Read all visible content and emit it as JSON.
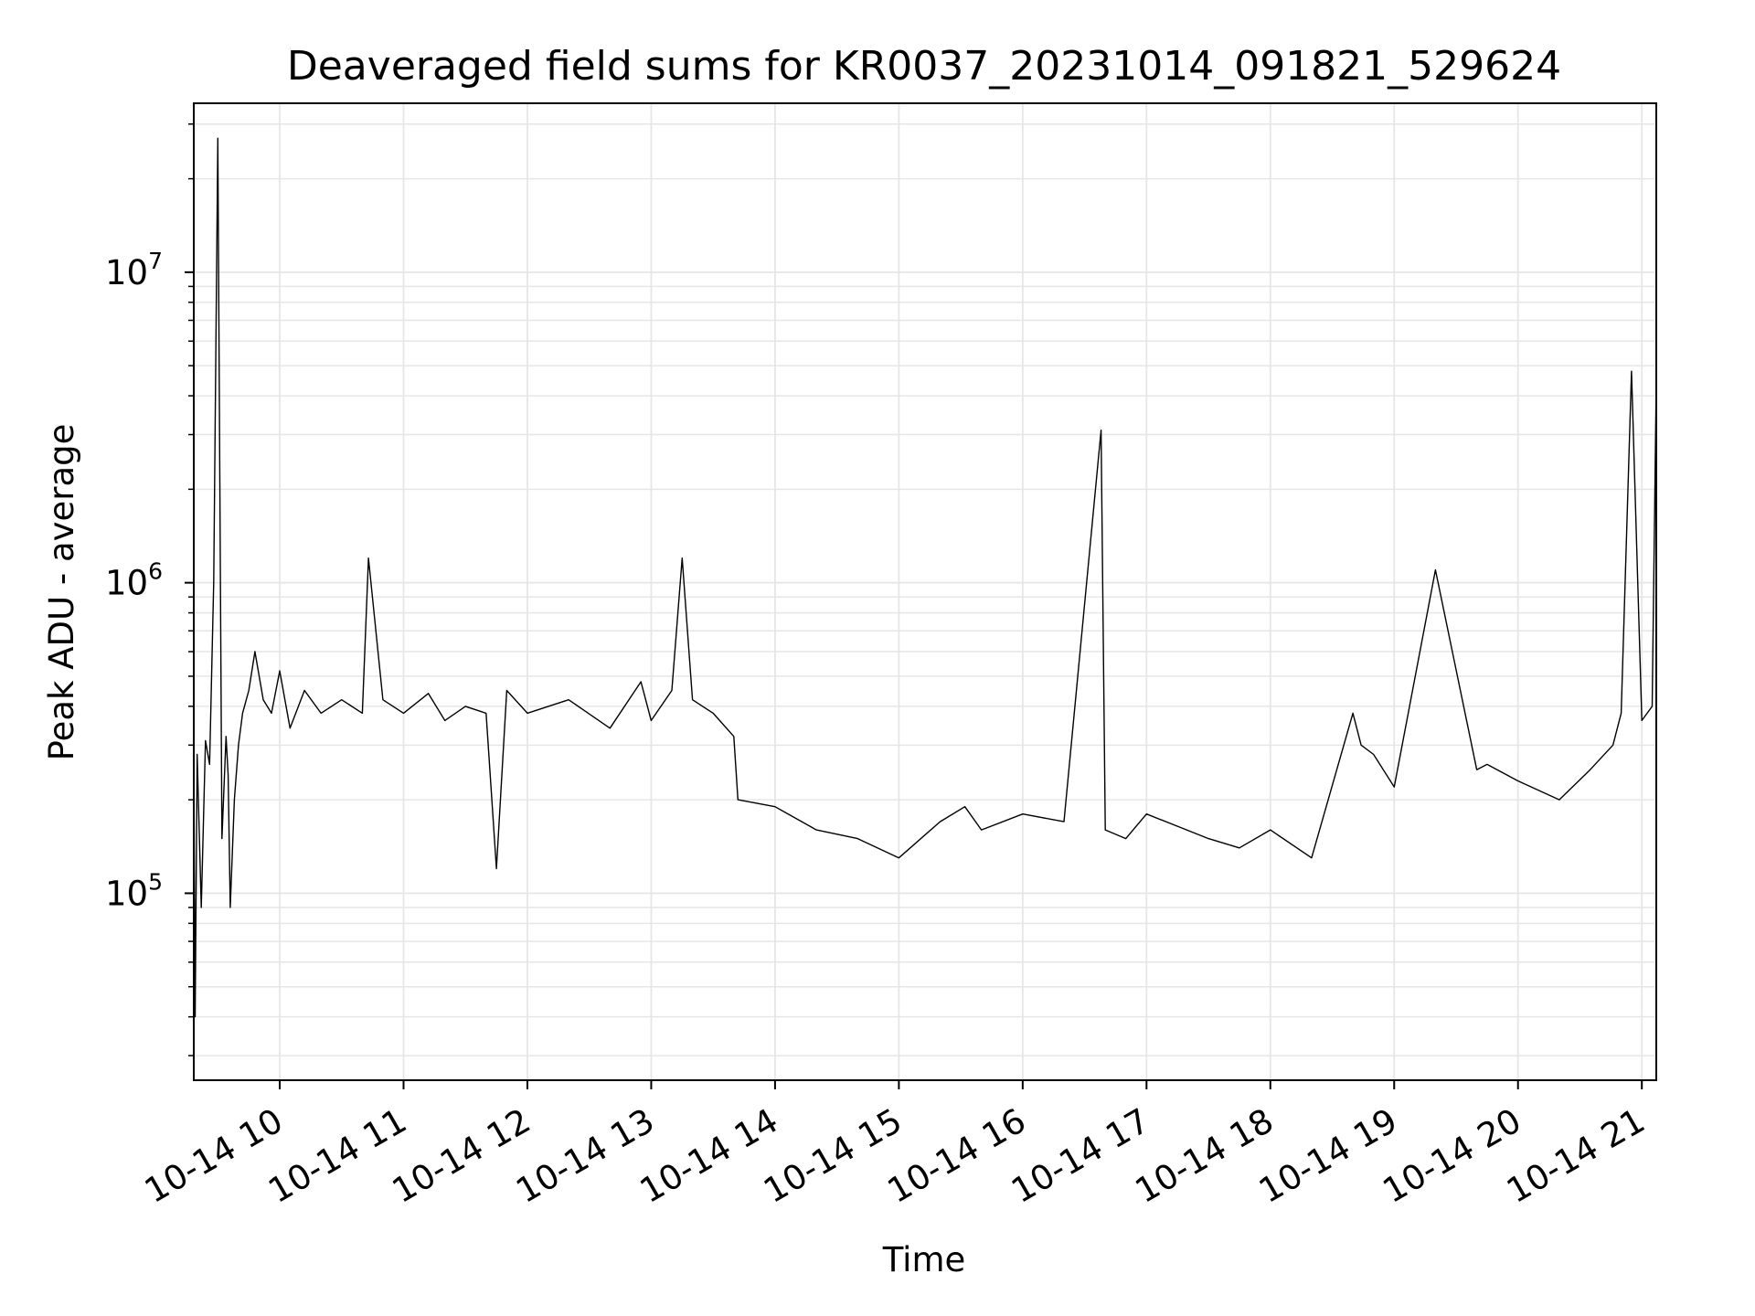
{
  "chart_data": {
    "type": "line",
    "title": "Deaveraged field sums for KR0037_20231014_091821_529624",
    "xlabel": "Time",
    "ylabel": "Peak ADU - average",
    "yscale": "log",
    "xlim": [
      "2023-10-14 09:18:21",
      "2023-10-14 21:07:00"
    ],
    "ylim": [
      25000,
      35000000
    ],
    "grid": true,
    "x_tick_labels": [
      "10-14 10",
      "10-14 11",
      "10-14 12",
      "10-14 13",
      "10-14 14",
      "10-14 15",
      "10-14 16",
      "10-14 17",
      "10-14 18",
      "10-14 19",
      "10-14 20",
      "10-14 21"
    ],
    "y_tick_labels": [
      {
        "base": "10",
        "exp": "5"
      },
      {
        "base": "10",
        "exp": "6"
      },
      {
        "base": "10",
        "exp": "7"
      }
    ],
    "series": [
      {
        "color": "#000000",
        "x": [
          "2023-10-14 09:18:21",
          "2023-10-14 09:19",
          "2023-10-14 09:20",
          "2023-10-14 09:22",
          "2023-10-14 09:24",
          "2023-10-14 09:26",
          "2023-10-14 09:28",
          "2023-10-14 09:30",
          "2023-10-14 09:32",
          "2023-10-14 09:34",
          "2023-10-14 09:35",
          "2023-10-14 09:36",
          "2023-10-14 09:38",
          "2023-10-14 09:40",
          "2023-10-14 09:42",
          "2023-10-14 09:45",
          "2023-10-14 09:48",
          "2023-10-14 09:52",
          "2023-10-14 09:56",
          "2023-10-14 10:00",
          "2023-10-14 10:05",
          "2023-10-14 10:12",
          "2023-10-14 10:20",
          "2023-10-14 10:30",
          "2023-10-14 10:40",
          "2023-10-14 10:43",
          "2023-10-14 10:50",
          "2023-10-14 11:00",
          "2023-10-14 11:12",
          "2023-10-14 11:20",
          "2023-10-14 11:30",
          "2023-10-14 11:40",
          "2023-10-14 11:45",
          "2023-10-14 11:50",
          "2023-10-14 12:00",
          "2023-10-14 12:20",
          "2023-10-14 12:40",
          "2023-10-14 12:55",
          "2023-10-14 13:00",
          "2023-10-14 13:10",
          "2023-10-14 13:15",
          "2023-10-14 13:20",
          "2023-10-14 13:30",
          "2023-10-14 13:40",
          "2023-10-14 13:42",
          "2023-10-14 14:00",
          "2023-10-14 14:20",
          "2023-10-14 14:40",
          "2023-10-14 15:00",
          "2023-10-14 15:20",
          "2023-10-14 15:32",
          "2023-10-14 15:40",
          "2023-10-14 16:00",
          "2023-10-14 16:20",
          "2023-10-14 16:38",
          "2023-10-14 16:40",
          "2023-10-14 16:50",
          "2023-10-14 17:00",
          "2023-10-14 17:30",
          "2023-10-14 17:45",
          "2023-10-14 18:00",
          "2023-10-14 18:20",
          "2023-10-14 18:40",
          "2023-10-14 18:44",
          "2023-10-14 18:50",
          "2023-10-14 19:00",
          "2023-10-14 19:20",
          "2023-10-14 19:40",
          "2023-10-14 19:45",
          "2023-10-14 20:00",
          "2023-10-14 20:20",
          "2023-10-14 20:35",
          "2023-10-14 20:46",
          "2023-10-14 20:50",
          "2023-10-14 20:55",
          "2023-10-14 21:00",
          "2023-10-14 21:05",
          "2023-10-14 21:07"
        ],
        "y": [
          270000,
          40000,
          280000,
          90000,
          310000,
          260000,
          1000000,
          27000000,
          150000,
          320000,
          240000,
          90000,
          200000,
          300000,
          380000,
          450000,
          600000,
          420000,
          380000,
          520000,
          340000,
          450000,
          380000,
          420000,
          380000,
          1200000,
          420000,
          380000,
          440000,
          360000,
          400000,
          380000,
          120000,
          450000,
          380000,
          420000,
          340000,
          480000,
          360000,
          450000,
          1200000,
          420000,
          380000,
          320000,
          200000,
          190000,
          160000,
          150000,
          130000,
          170000,
          190000,
          160000,
          180000,
          170000,
          3100000,
          160000,
          150000,
          180000,
          150000,
          140000,
          160000,
          130000,
          380000,
          300000,
          280000,
          220000,
          1100000,
          250000,
          260000,
          230000,
          200000,
          250000,
          300000,
          380000,
          4800000,
          360000,
          400000,
          4500000
        ]
      }
    ]
  }
}
